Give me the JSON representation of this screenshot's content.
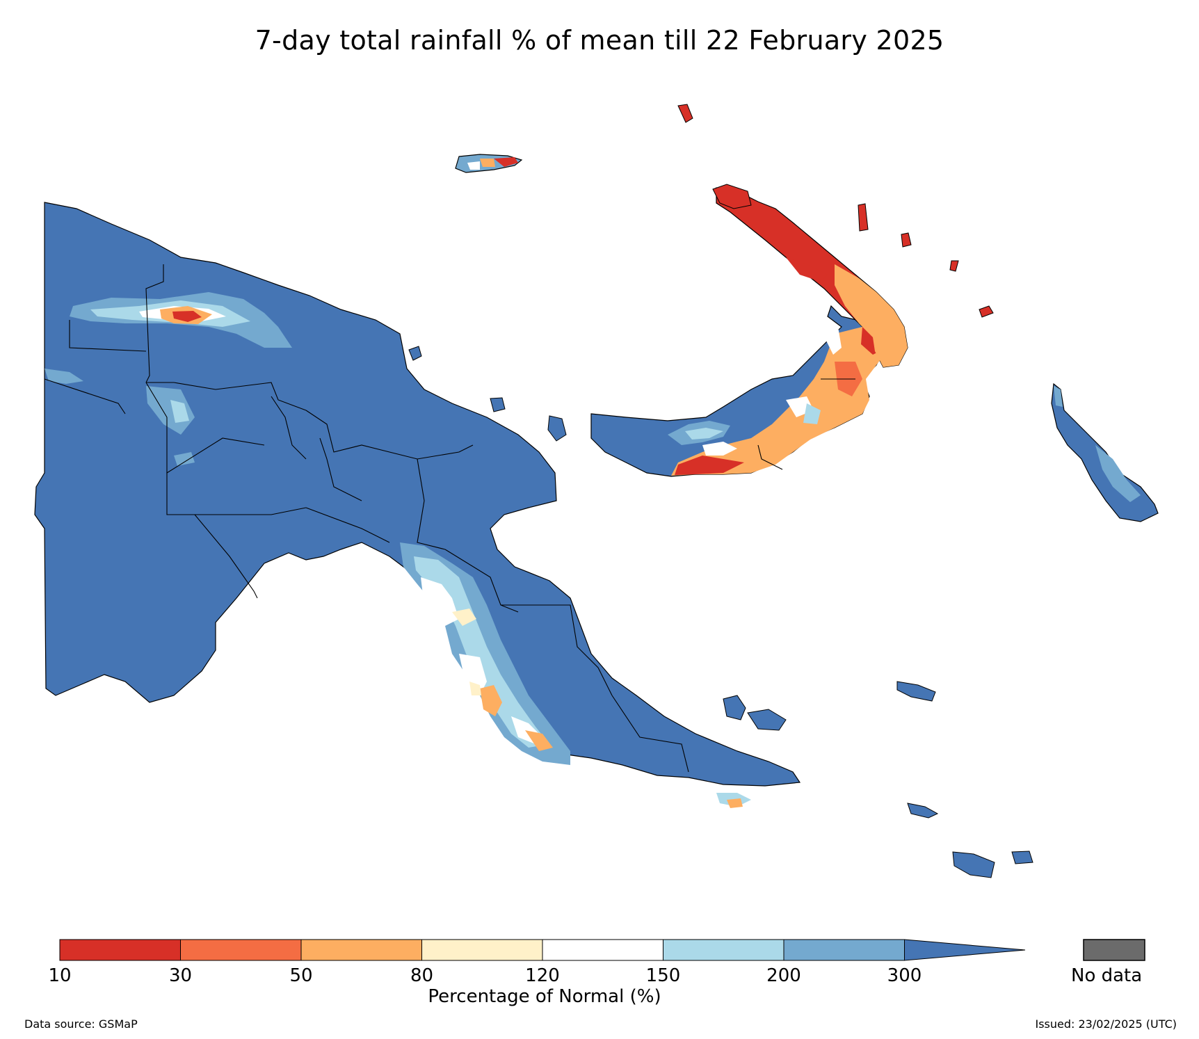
{
  "title": "7-day total rainfall % of mean till 22 February 2025",
  "colors": {
    "lt30": "#d73027",
    "30_50": "#f46d43",
    "50_80": "#fdae61",
    "80_120": "#fff1c9",
    "120_150": "#ffffff",
    "150_200": "#abd9e9",
    "200_300": "#74a9cf",
    "gt300": "#4575b4",
    "no_data": "#6b6b6b",
    "boundary": "#000000"
  },
  "legend": {
    "ticks": [
      "10",
      "30",
      "50",
      "80",
      "120",
      "150",
      "200",
      "300"
    ],
    "label": "Percentage of Normal (%)",
    "no_data_label": "No data",
    "bins": [
      "10-30",
      "30-50",
      "50-80",
      "80-120",
      "120-150",
      "150-200",
      "200-300",
      ">300"
    ]
  },
  "footer": {
    "source": "Data source: GSMaP",
    "issued": "Issued: 23/02/2025 (UTC)"
  },
  "map_regions": {
    "mainland": "gt300",
    "sepik_highlands_band": "200_300",
    "new_britain_west": "gt300",
    "new_britain_east": "50_80",
    "new_ireland": "lt30",
    "manus": "200_300",
    "bougainville": "gt300",
    "milne_bay_islands": "gt300"
  }
}
